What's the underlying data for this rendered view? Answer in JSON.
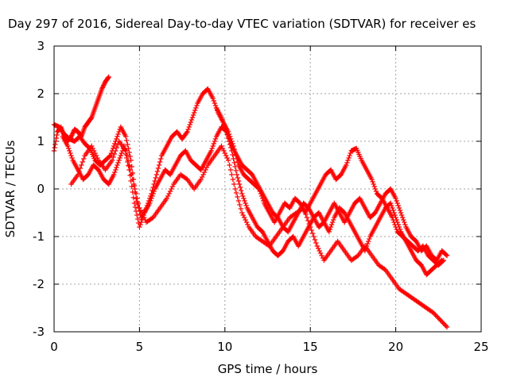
{
  "chart_data": {
    "type": "scatter",
    "title": "Day 297 of 2016, Sidereal Day-to-day VTEC variation (SDTVAR) for receiver es",
    "xlabel": "GPS time / hours",
    "ylabel": "SDTVAR / TECUs",
    "xlim": [
      0,
      25
    ],
    "ylim": [
      -3,
      3
    ],
    "xticks": [
      "0",
      "5",
      "10",
      "15",
      "20",
      "25"
    ],
    "yticks": [
      "-3",
      "-2",
      "-1",
      "0",
      "1",
      "2",
      "3"
    ],
    "grid": true,
    "legend": "none",
    "marker": "+",
    "color": "#ff0000",
    "series": [
      {
        "x": [
          0,
          0.2,
          0.4,
          0.6,
          0.8,
          1.0,
          1.2,
          1.4,
          1.6,
          1.8,
          2.0,
          2.2,
          2.4,
          2.6,
          2.8,
          3.0,
          3.2
        ],
        "values": [
          0.8,
          1.2,
          1.3,
          1.1,
          1.0,
          1.1,
          1.25,
          1.2,
          1.1,
          1.3,
          1.4,
          1.5,
          1.7,
          1.9,
          2.1,
          2.25,
          2.35
        ]
      },
      {
        "x": [
          0,
          0.3,
          0.6,
          0.9,
          1.2,
          1.5,
          1.8,
          2.1,
          2.4,
          2.7,
          3.0,
          3.3,
          3.6,
          3.9,
          4.2,
          4.5,
          4.8,
          5.1,
          5.4,
          5.7,
          6.0,
          6.3,
          6.6,
          6.9,
          7.2,
          7.5,
          7.8,
          8.1,
          8.4,
          8.7,
          9.0,
          9.3,
          9.6,
          9.9,
          10.2,
          10.5,
          10.8,
          11.1,
          11.4,
          11.7,
          12.0,
          12.3,
          12.6,
          12.9,
          13.2,
          13.5,
          13.8,
          14.1,
          14.4,
          14.7,
          15.0,
          15.3,
          15.6,
          15.9,
          16.2,
          16.5,
          16.8,
          17.1,
          17.4,
          17.7,
          18.0,
          18.3,
          18.6,
          18.9,
          19.2,
          19.5,
          19.8,
          20.1,
          20.4,
          20.7,
          21.0,
          21.3,
          21.6,
          21.9,
          22.2,
          22.5,
          22.8
        ],
        "values": [
          1.35,
          1.3,
          1.15,
          1.05,
          1.0,
          1.1,
          0.95,
          0.85,
          0.6,
          0.5,
          0.6,
          0.7,
          1.0,
          1.3,
          1.1,
          0.6,
          -0.2,
          -0.6,
          -0.4,
          -0.1,
          0.3,
          0.7,
          0.9,
          1.1,
          1.2,
          1.05,
          1.2,
          1.5,
          1.8,
          2.0,
          2.1,
          1.9,
          1.6,
          1.4,
          1.2,
          0.9,
          0.5,
          0.3,
          0.2,
          0.1,
          0.0,
          -0.3,
          -0.5,
          -0.7,
          -0.5,
          -0.3,
          -0.4,
          -0.2,
          -0.3,
          -0.5,
          -0.3,
          -0.1,
          0.1,
          0.3,
          0.4,
          0.2,
          0.3,
          0.5,
          0.8,
          0.85,
          0.6,
          0.4,
          0.2,
          -0.1,
          -0.2,
          -0.4,
          -0.6,
          -0.9,
          -1.0,
          -1.1,
          -1.2,
          -1.3,
          -1.2,
          -1.4,
          -1.5,
          -1.6,
          -1.5
        ]
      },
      {
        "x": [
          0.5,
          0.8,
          1.1,
          1.4,
          1.7,
          2.0,
          2.3,
          2.6,
          2.9,
          3.2,
          3.5,
          3.8,
          4.1,
          4.4,
          4.7,
          5.0,
          5.3,
          5.6,
          5.9,
          6.2,
          6.5,
          6.8,
          7.1,
          7.4,
          7.7,
          8.0,
          8.3,
          8.6,
          8.9,
          9.2,
          9.5,
          9.8,
          10.1,
          10.4,
          10.7,
          11.0,
          11.3,
          11.6,
          11.9,
          12.2,
          12.5,
          12.8,
          13.1,
          13.4,
          13.7,
          14.0,
          14.3,
          14.6,
          14.9,
          15.2,
          15.5,
          15.8,
          16.1,
          16.4,
          16.7,
          17.0,
          17.3,
          17.6,
          17.9,
          18.2,
          18.5,
          18.8,
          19.1,
          19.4,
          19.7,
          20.0,
          20.3,
          20.6,
          20.9,
          21.2,
          21.5,
          21.8,
          22.1,
          22.4,
          22.7
        ],
        "values": [
          1.1,
          0.9,
          0.6,
          0.4,
          0.2,
          0.3,
          0.5,
          0.4,
          0.2,
          0.1,
          0.3,
          0.6,
          0.9,
          0.4,
          -0.3,
          -0.8,
          -0.5,
          -0.3,
          0.0,
          0.2,
          0.4,
          0.3,
          0.5,
          0.7,
          0.8,
          0.6,
          0.5,
          0.4,
          0.6,
          0.8,
          1.1,
          1.3,
          1.2,
          0.8,
          0.3,
          -0.1,
          -0.4,
          -0.6,
          -0.8,
          -0.9,
          -1.1,
          -1.3,
          -1.4,
          -1.3,
          -1.1,
          -1.0,
          -1.2,
          -1.0,
          -0.8,
          -0.6,
          -0.5,
          -0.7,
          -0.9,
          -0.6,
          -0.4,
          -0.5,
          -0.7,
          -0.9,
          -1.1,
          -1.3,
          -1.0,
          -0.8,
          -0.6,
          -0.4,
          -0.3,
          -0.6,
          -0.9,
          -1.1,
          -1.3,
          -1.5,
          -1.6,
          -1.8,
          -1.7,
          -1.6,
          -1.5
        ]
      },
      {
        "x": [
          1.0,
          1.4,
          1.8,
          2.2,
          2.6,
          3.0,
          3.4,
          3.8,
          4.2,
          4.6,
          5.0,
          5.4,
          5.8,
          6.2,
          6.6,
          7.0,
          7.4,
          7.8,
          8.2,
          8.6,
          9.0,
          9.4,
          9.8,
          10.2,
          10.6,
          11.0,
          11.4,
          11.8,
          12.2,
          12.6,
          13.0,
          13.4,
          13.8,
          14.2,
          14.6,
          15.0,
          15.4,
          15.8,
          16.2,
          16.6,
          17.0,
          17.4,
          17.8,
          18.2,
          18.6,
          19.0,
          19.4,
          19.8,
          20.2,
          20.6,
          21.0,
          21.4,
          21.8,
          22.2,
          22.6,
          23.0
        ],
        "values": [
          0.1,
          0.3,
          0.7,
          0.9,
          0.6,
          0.4,
          0.6,
          1.0,
          0.8,
          0.2,
          -0.4,
          -0.7,
          -0.6,
          -0.4,
          -0.2,
          0.1,
          0.3,
          0.2,
          0.0,
          0.2,
          0.5,
          0.7,
          0.9,
          0.6,
          0.0,
          -0.5,
          -0.8,
          -1.0,
          -1.1,
          -1.2,
          -1.0,
          -0.8,
          -0.6,
          -0.5,
          -0.4,
          -0.8,
          -1.2,
          -1.5,
          -1.3,
          -1.1,
          -1.3,
          -1.5,
          -1.4,
          -1.2,
          -1.4,
          -1.6,
          -1.7,
          -1.9,
          -2.1,
          -2.2,
          -2.3,
          -2.4,
          -2.5,
          -2.6,
          -2.75,
          -2.9
        ]
      },
      {
        "x": [
          9.5,
          9.8,
          10.1,
          10.4,
          10.7,
          11.0,
          11.3,
          11.6,
          11.9,
          12.2,
          12.5,
          12.8,
          13.1,
          13.4,
          13.7,
          14.0,
          14.3,
          14.6,
          14.9,
          15.2,
          15.5,
          15.8,
          16.1,
          16.4,
          16.7,
          17.0,
          17.3,
          17.6,
          17.9,
          18.2,
          18.5,
          18.8,
          19.1,
          19.4,
          19.7,
          20.0,
          20.3,
          20.6,
          20.9,
          21.2,
          21.5,
          21.8,
          22.1,
          22.4,
          22.7,
          23.0
        ],
        "values": [
          1.7,
          1.5,
          1.2,
          0.9,
          0.7,
          0.5,
          0.4,
          0.3,
          0.1,
          -0.1,
          -0.3,
          -0.5,
          -0.6,
          -0.8,
          -0.9,
          -0.7,
          -0.5,
          -0.3,
          -0.4,
          -0.6,
          -0.8,
          -0.7,
          -0.5,
          -0.3,
          -0.5,
          -0.7,
          -0.5,
          -0.3,
          -0.2,
          -0.4,
          -0.6,
          -0.5,
          -0.3,
          -0.1,
          0.0,
          -0.2,
          -0.5,
          -0.8,
          -1.0,
          -1.1,
          -1.3,
          -1.2,
          -1.4,
          -1.5,
          -1.3,
          -1.4
        ]
      }
    ]
  }
}
